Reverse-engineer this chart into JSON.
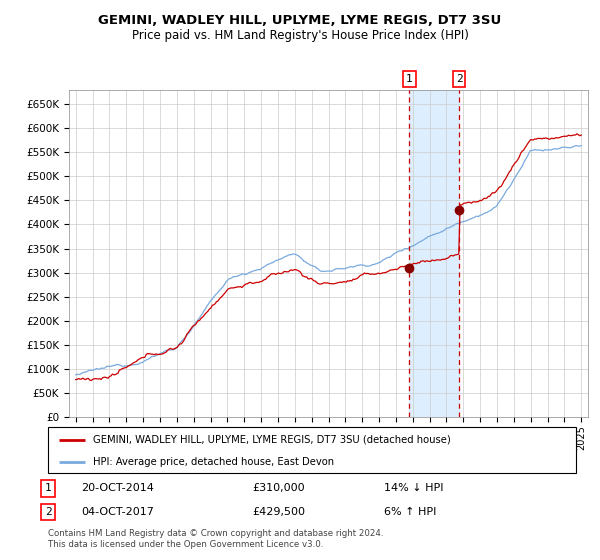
{
  "title": "GEMINI, WADLEY HILL, UPLYME, LYME REGIS, DT7 3SU",
  "subtitle": "Price paid vs. HM Land Registry's House Price Index (HPI)",
  "legend_line1": "GEMINI, WADLEY HILL, UPLYME, LYME REGIS, DT7 3SU (detached house)",
  "legend_line2": "HPI: Average price, detached house, East Devon",
  "sale1_date": "20-OCT-2014",
  "sale1_price": "£310,000",
  "sale1_hpi": "14% ↓ HPI",
  "sale2_date": "04-OCT-2017",
  "sale2_price": "£429,500",
  "sale2_hpi": "6% ↑ HPI",
  "footnote1": "Contains HM Land Registry data © Crown copyright and database right 2024.",
  "footnote2": "This data is licensed under the Open Government Licence v3.0.",
  "hpi_color": "#7aaadd",
  "price_color": "#cc0000",
  "sale_marker_color": "#880000",
  "vline_color": "#cc0000",
  "shade_color": "#ddeeff",
  "ylim": [
    0,
    680000
  ],
  "yticks": [
    0,
    50000,
    100000,
    150000,
    200000,
    250000,
    300000,
    350000,
    400000,
    450000,
    500000,
    550000,
    600000,
    650000
  ],
  "year_start": 1995,
  "year_end": 2025,
  "sale1_year": 2014.8,
  "sale2_year": 2017.75
}
